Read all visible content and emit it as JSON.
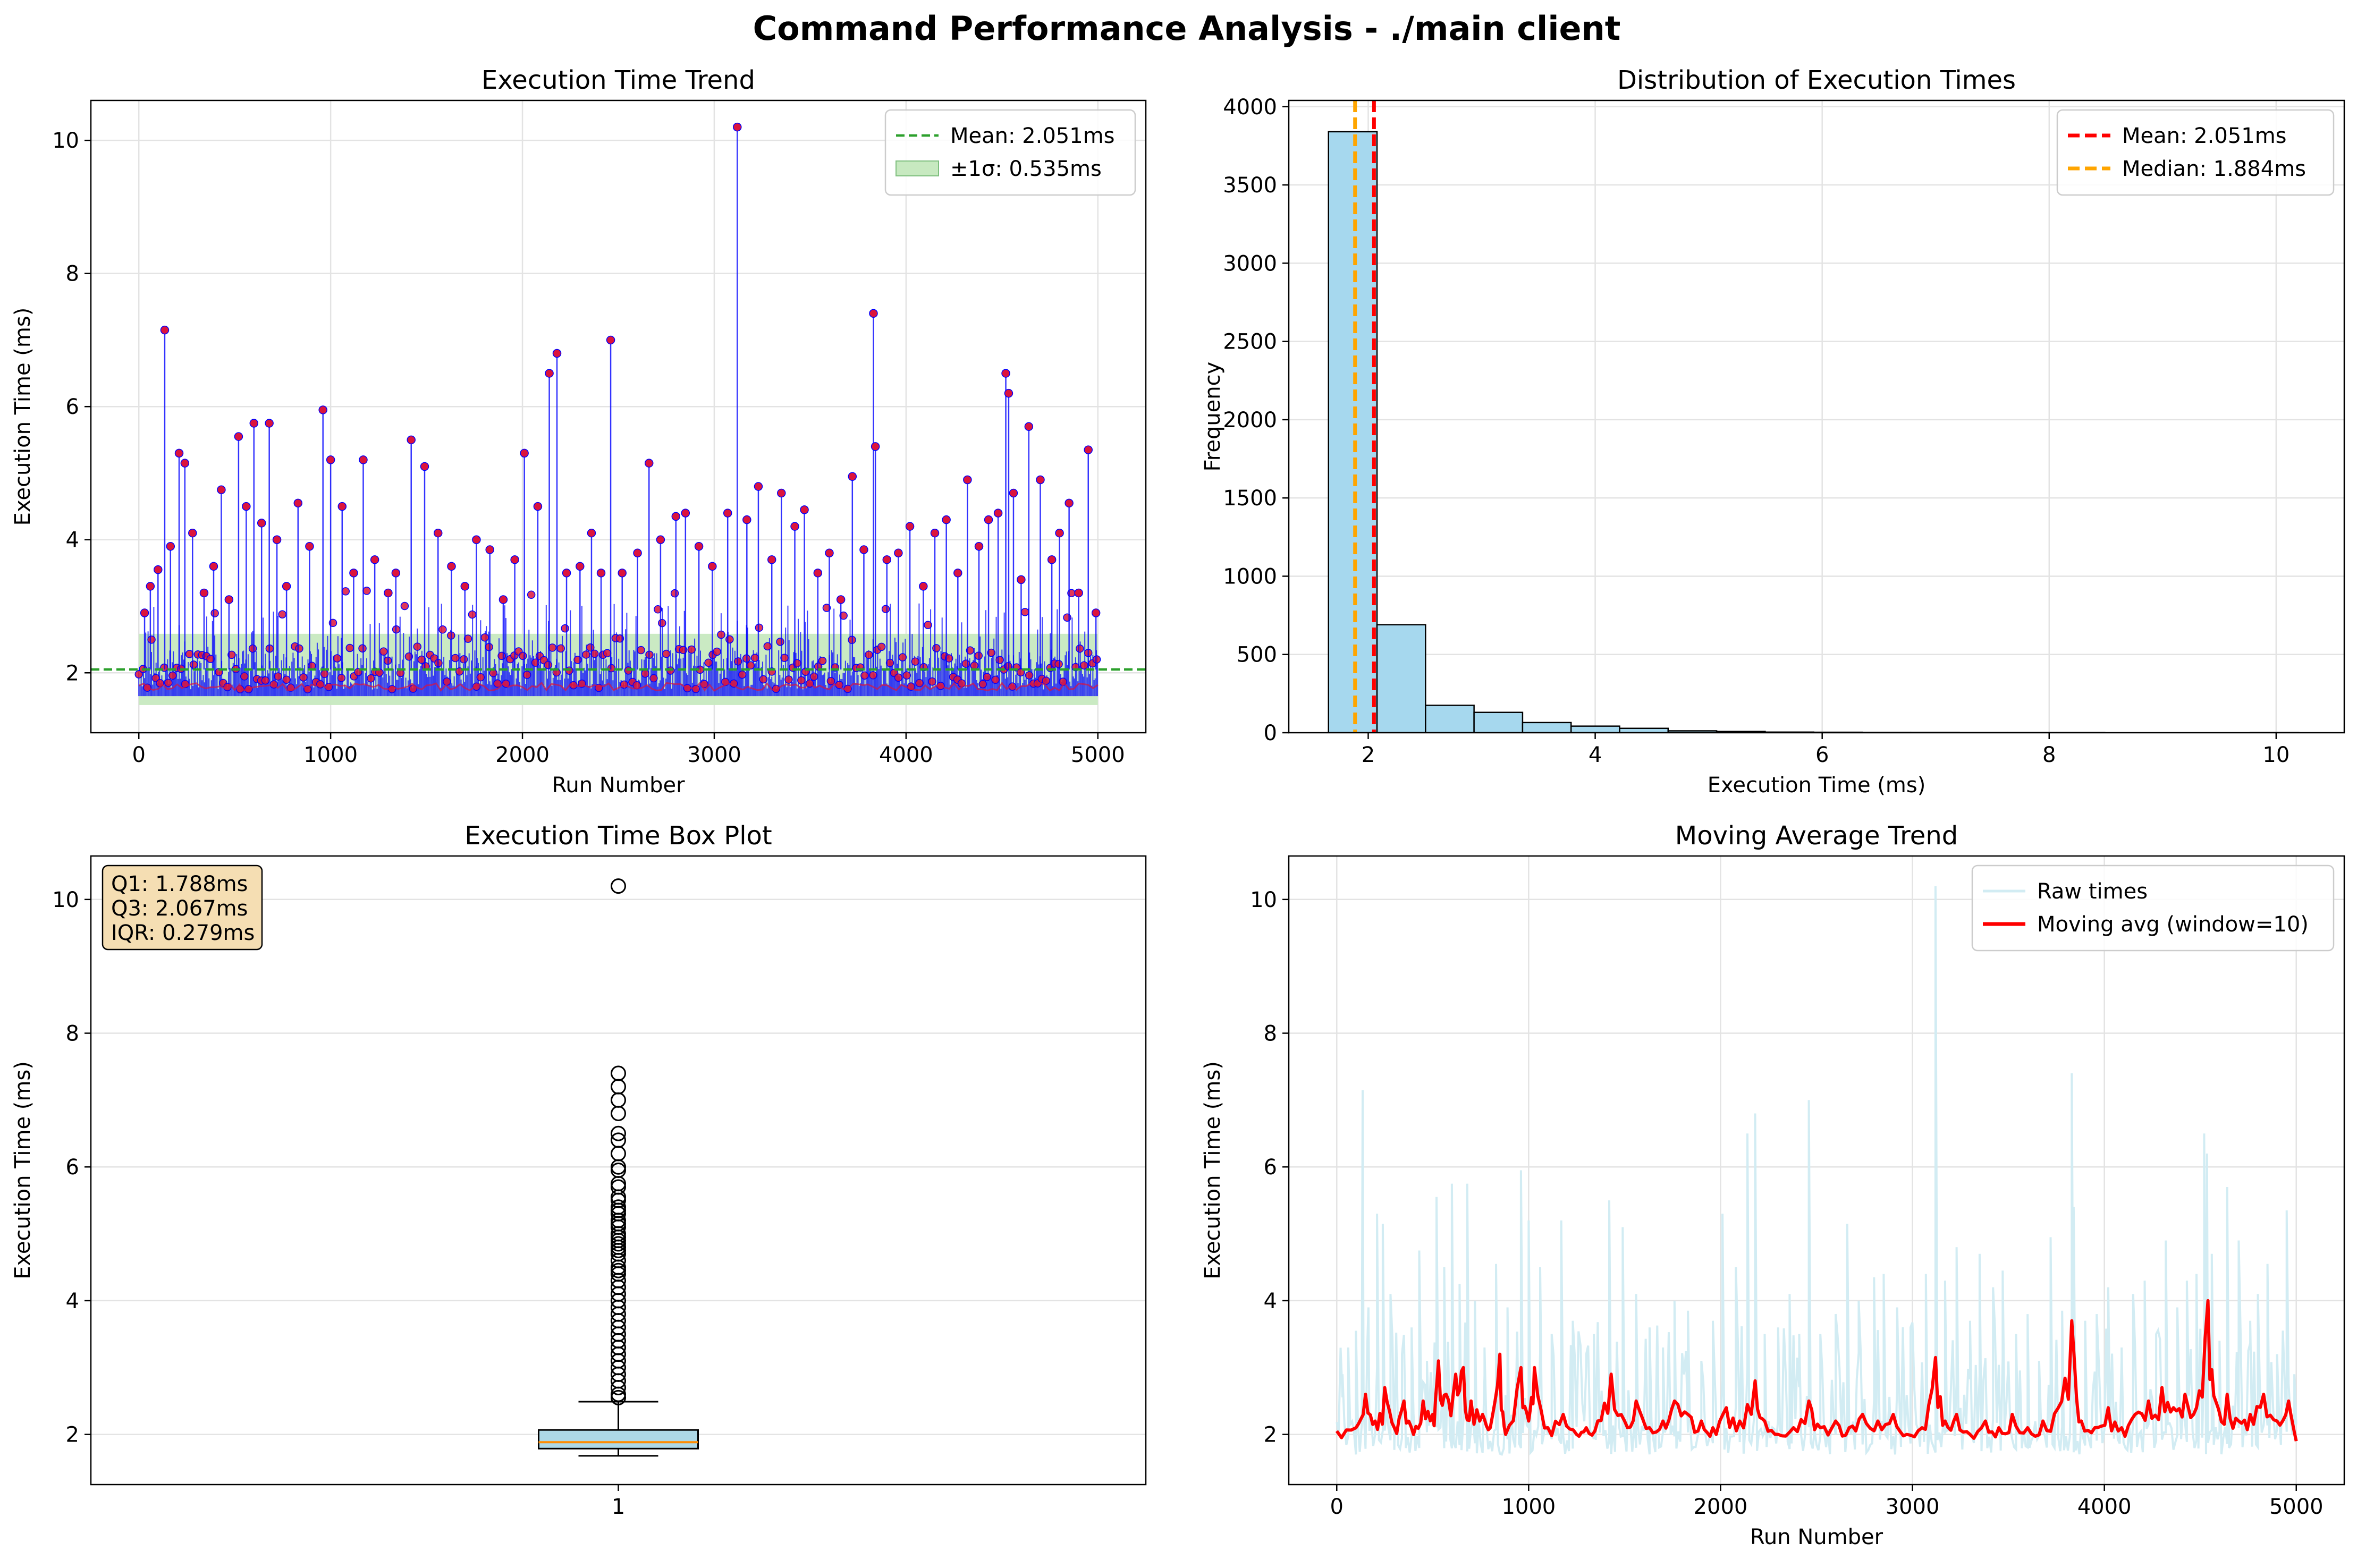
{
  "suptitle": "Command Performance Analysis - ./main client",
  "colors": {
    "trend_line": "#0000ff",
    "trend_marker": "#dc143c",
    "mean_line_trend": "#2ca02c",
    "sigma_band": "#c7e9c0",
    "hist_fill": "#a6d8ee",
    "mean_line": "#ff0000",
    "median_line": "#ffa500",
    "box_fill": "#add8e6",
    "box_median": "#ff8c00",
    "raw_times": "#d2ecf3",
    "moving_avg": "#ff0000",
    "annot_box": "#f5deb3"
  },
  "chart_data": [
    {
      "id": "trend",
      "type": "line",
      "title": "Execution Time Trend",
      "xlabel": "Run Number",
      "ylabel": "Execution Time (ms)",
      "xlim": [
        -250,
        5250
      ],
      "ylim": [
        1.1,
        10.6
      ],
      "xticks": [
        0,
        1000,
        2000,
        3000,
        4000,
        5000
      ],
      "yticks": [
        2,
        4,
        6,
        8,
        10
      ],
      "grid": true,
      "legend_position": "top-right",
      "legend": [
        "Mean: 2.051ms",
        "±1σ: 0.535ms"
      ],
      "mean": 2.051,
      "sigma": 0.535,
      "baseline": 1.65,
      "n_runs": 5000,
      "spikes": [
        {
          "x": 30,
          "y": 2.9
        },
        {
          "x": 60,
          "y": 3.3
        },
        {
          "x": 100,
          "y": 3.55
        },
        {
          "x": 135,
          "y": 7.15
        },
        {
          "x": 165,
          "y": 3.9
        },
        {
          "x": 210,
          "y": 5.3
        },
        {
          "x": 240,
          "y": 5.15
        },
        {
          "x": 280,
          "y": 4.1
        },
        {
          "x": 340,
          "y": 3.2
        },
        {
          "x": 390,
          "y": 3.6
        },
        {
          "x": 430,
          "y": 4.75
        },
        {
          "x": 470,
          "y": 3.1
        },
        {
          "x": 520,
          "y": 5.55
        },
        {
          "x": 560,
          "y": 4.5
        },
        {
          "x": 600,
          "y": 5.75
        },
        {
          "x": 640,
          "y": 4.25
        },
        {
          "x": 680,
          "y": 5.75
        },
        {
          "x": 720,
          "y": 4.0
        },
        {
          "x": 770,
          "y": 3.3
        },
        {
          "x": 830,
          "y": 4.55
        },
        {
          "x": 890,
          "y": 3.9
        },
        {
          "x": 960,
          "y": 5.95
        },
        {
          "x": 1000,
          "y": 5.2
        },
        {
          "x": 1060,
          "y": 4.5
        },
        {
          "x": 1120,
          "y": 3.5
        },
        {
          "x": 1170,
          "y": 5.2
        },
        {
          "x": 1230,
          "y": 3.7
        },
        {
          "x": 1300,
          "y": 3.2
        },
        {
          "x": 1340,
          "y": 3.5
        },
        {
          "x": 1420,
          "y": 5.5
        },
        {
          "x": 1490,
          "y": 5.1
        },
        {
          "x": 1560,
          "y": 4.1
        },
        {
          "x": 1630,
          "y": 3.6
        },
        {
          "x": 1700,
          "y": 3.3
        },
        {
          "x": 1760,
          "y": 4.0
        },
        {
          "x": 1830,
          "y": 3.85
        },
        {
          "x": 1900,
          "y": 3.1
        },
        {
          "x": 1960,
          "y": 3.7
        },
        {
          "x": 2010,
          "y": 5.3
        },
        {
          "x": 2080,
          "y": 4.5
        },
        {
          "x": 2140,
          "y": 6.5
        },
        {
          "x": 2180,
          "y": 6.8
        },
        {
          "x": 2230,
          "y": 3.5
        },
        {
          "x": 2300,
          "y": 3.6
        },
        {
          "x": 2360,
          "y": 4.1
        },
        {
          "x": 2410,
          "y": 3.5
        },
        {
          "x": 2460,
          "y": 7.0
        },
        {
          "x": 2520,
          "y": 3.5
        },
        {
          "x": 2600,
          "y": 3.8
        },
        {
          "x": 2660,
          "y": 5.15
        },
        {
          "x": 2720,
          "y": 4.0
        },
        {
          "x": 2800,
          "y": 4.35
        },
        {
          "x": 2850,
          "y": 4.4
        },
        {
          "x": 2920,
          "y": 3.9
        },
        {
          "x": 2990,
          "y": 3.6
        },
        {
          "x": 3070,
          "y": 4.4
        },
        {
          "x": 3120,
          "y": 10.2
        },
        {
          "x": 3170,
          "y": 4.3
        },
        {
          "x": 3230,
          "y": 4.8
        },
        {
          "x": 3300,
          "y": 3.7
        },
        {
          "x": 3350,
          "y": 4.7
        },
        {
          "x": 3420,
          "y": 4.2
        },
        {
          "x": 3470,
          "y": 4.45
        },
        {
          "x": 3540,
          "y": 3.5
        },
        {
          "x": 3600,
          "y": 3.8
        },
        {
          "x": 3660,
          "y": 3.1
        },
        {
          "x": 3720,
          "y": 4.95
        },
        {
          "x": 3780,
          "y": 3.85
        },
        {
          "x": 3830,
          "y": 7.4
        },
        {
          "x": 3840,
          "y": 5.4
        },
        {
          "x": 3900,
          "y": 3.7
        },
        {
          "x": 3960,
          "y": 3.8
        },
        {
          "x": 4020,
          "y": 4.2
        },
        {
          "x": 4090,
          "y": 3.3
        },
        {
          "x": 4150,
          "y": 4.1
        },
        {
          "x": 4210,
          "y": 4.3
        },
        {
          "x": 4270,
          "y": 3.5
        },
        {
          "x": 4320,
          "y": 4.9
        },
        {
          "x": 4380,
          "y": 3.9
        },
        {
          "x": 4430,
          "y": 4.3
        },
        {
          "x": 4480,
          "y": 4.4
        },
        {
          "x": 4520,
          "y": 6.5
        },
        {
          "x": 4535,
          "y": 6.2
        },
        {
          "x": 4560,
          "y": 4.7
        },
        {
          "x": 4600,
          "y": 3.4
        },
        {
          "x": 4640,
          "y": 5.7
        },
        {
          "x": 4700,
          "y": 4.9
        },
        {
          "x": 4760,
          "y": 3.7
        },
        {
          "x": 4800,
          "y": 4.1
        },
        {
          "x": 4850,
          "y": 4.55
        },
        {
          "x": 4900,
          "y": 3.2
        },
        {
          "x": 4950,
          "y": 5.35
        },
        {
          "x": 4990,
          "y": 2.9
        }
      ]
    },
    {
      "id": "hist",
      "type": "bar",
      "title": "Distribution of Execution Times",
      "xlabel": "Execution Time (ms)",
      "ylabel": "Frequency",
      "xlim": [
        1.3,
        10.6
      ],
      "ylim": [
        0,
        4040
      ],
      "xticks": [
        2,
        4,
        6,
        8,
        10
      ],
      "yticks": [
        0,
        500,
        1000,
        1500,
        2000,
        2500,
        3000,
        3500,
        4000
      ],
      "grid": true,
      "legend_position": "top-right",
      "legend": [
        "Mean: 2.051ms",
        "Median: 1.884ms"
      ],
      "mean": 2.051,
      "median": 1.884,
      "bin_start": 1.65,
      "bin_width": 0.4275,
      "counts": [
        3840,
        690,
        175,
        130,
        65,
        42,
        28,
        12,
        8,
        4,
        3,
        2,
        2,
        1,
        1,
        1,
        0,
        0,
        0,
        1
      ]
    },
    {
      "id": "box",
      "type": "box",
      "title": "Execution Time Box Plot",
      "ylabel": "Execution Time (ms)",
      "ylim": [
        1.25,
        10.65
      ],
      "yticks": [
        2,
        4,
        6,
        8,
        10
      ],
      "xtick_label": "1",
      "grid": true,
      "q1": 1.788,
      "q3": 2.067,
      "median": 1.884,
      "whisker_low": 1.68,
      "whisker_high": 2.49,
      "annotation": [
        "Q1: 1.788ms",
        "Q3: 2.067ms",
        "IQR: 0.279ms"
      ],
      "outliers": [
        10.2,
        7.4,
        7.2,
        7.0,
        6.8,
        6.5,
        6.4,
        6.2,
        6.0,
        5.95,
        5.75,
        5.7,
        5.55,
        5.5,
        5.4,
        5.35,
        5.3,
        5.2,
        5.15,
        5.1,
        5.0,
        4.95,
        4.9,
        4.85,
        4.8,
        4.75,
        4.7,
        4.6,
        4.5,
        4.45,
        4.4,
        4.3,
        4.2,
        4.1,
        4.0,
        3.9,
        3.8,
        3.7,
        3.6,
        3.5,
        3.4,
        3.3,
        3.2,
        3.1,
        3.0,
        2.9,
        2.8,
        2.7,
        2.6,
        2.55
      ]
    },
    {
      "id": "moving",
      "type": "line",
      "title": "Moving Average Trend",
      "xlabel": "Run Number",
      "ylabel": "Execution Time (ms)",
      "xlim": [
        -250,
        5250
      ],
      "ylim": [
        1.25,
        10.65
      ],
      "xticks": [
        0,
        1000,
        2000,
        3000,
        4000,
        5000
      ],
      "yticks": [
        2,
        4,
        6,
        8,
        10
      ],
      "grid": true,
      "legend_position": "top-right",
      "legend": [
        "Raw times",
        "Moving avg (window=10)"
      ],
      "moving_avg": [
        [
          0,
          2.05
        ],
        [
          100,
          2.1
        ],
        [
          150,
          2.6
        ],
        [
          200,
          2.2
        ],
        [
          250,
          2.7
        ],
        [
          300,
          2.1
        ],
        [
          350,
          2.5
        ],
        [
          400,
          2.0
        ],
        [
          450,
          2.5
        ],
        [
          500,
          2.3
        ],
        [
          530,
          3.1
        ],
        [
          570,
          2.6
        ],
        [
          620,
          2.9
        ],
        [
          660,
          3.0
        ],
        [
          700,
          2.5
        ],
        [
          760,
          2.3
        ],
        [
          800,
          2.1
        ],
        [
          850,
          3.2
        ],
        [
          880,
          2.0
        ],
        [
          960,
          3.0
        ],
        [
          1000,
          2.2
        ],
        [
          1030,
          3.0
        ],
        [
          1100,
          2.1
        ],
        [
          1180,
          2.3
        ],
        [
          1250,
          2.0
        ],
        [
          1300,
          2.1
        ],
        [
          1360,
          2.2
        ],
        [
          1430,
          2.9
        ],
        [
          1500,
          2.2
        ],
        [
          1560,
          2.5
        ],
        [
          1630,
          2.1
        ],
        [
          1700,
          2.2
        ],
        [
          1760,
          2.5
        ],
        [
          1830,
          2.3
        ],
        [
          1900,
          2.2
        ],
        [
          1960,
          2.1
        ],
        [
          2030,
          2.4
        ],
        [
          2100,
          2.2
        ],
        [
          2180,
          2.8
        ],
        [
          2230,
          2.2
        ],
        [
          2300,
          2.0
        ],
        [
          2380,
          2.1
        ],
        [
          2460,
          2.5
        ],
        [
          2520,
          2.1
        ],
        [
          2600,
          2.2
        ],
        [
          2670,
          2.1
        ],
        [
          2740,
          2.3
        ],
        [
          2820,
          2.2
        ],
        [
          2900,
          2.3
        ],
        [
          2970,
          2.0
        ],
        [
          3050,
          2.1
        ],
        [
          3120,
          3.15
        ],
        [
          3170,
          2.2
        ],
        [
          3230,
          2.3
        ],
        [
          3300,
          2.0
        ],
        [
          3380,
          2.2
        ],
        [
          3450,
          2.1
        ],
        [
          3520,
          2.3
        ],
        [
          3600,
          2.1
        ],
        [
          3680,
          2.2
        ],
        [
          3760,
          2.4
        ],
        [
          3830,
          3.7
        ],
        [
          3880,
          2.2
        ],
        [
          3950,
          2.1
        ],
        [
          4020,
          2.4
        ],
        [
          4090,
          2.1
        ],
        [
          4160,
          2.3
        ],
        [
          4230,
          2.5
        ],
        [
          4300,
          2.7
        ],
        [
          4360,
          2.4
        ],
        [
          4420,
          2.6
        ],
        [
          4480,
          2.4
        ],
        [
          4540,
          4.0
        ],
        [
          4580,
          2.5
        ],
        [
          4640,
          2.6
        ],
        [
          4700,
          2.2
        ],
        [
          4760,
          2.3
        ],
        [
          4830,
          2.6
        ],
        [
          4900,
          2.2
        ],
        [
          4960,
          2.5
        ],
        [
          5000,
          1.9
        ]
      ]
    }
  ]
}
